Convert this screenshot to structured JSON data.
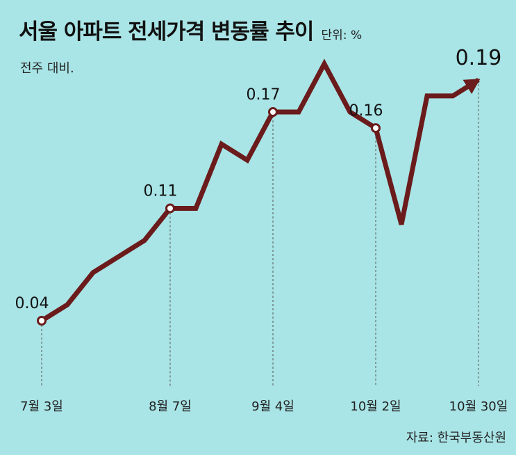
{
  "header": {
    "title": "서울 아파트 전세가격 변동률 추이",
    "unit": "단위: %",
    "subtitle": "전주 대비."
  },
  "source": "자료: 한국부동산원",
  "colors": {
    "background": "#a9e4e6",
    "line": "#6b1b1b",
    "marker_fill": "#ffffff",
    "guide": "#555555"
  },
  "chart_data": {
    "type": "line",
    "title": "서울 아파트 전세가격 변동률 추이",
    "ylabel": "단위: %",
    "note": "전주 대비.",
    "x_tick_labels": [
      "7월 3일",
      "8월 7일",
      "9월 4일",
      "10월 2일",
      "10월 30일"
    ],
    "x_ticks_index": [
      0,
      5,
      9,
      13,
      17
    ],
    "series": [
      {
        "values": [
          0.04,
          0.05,
          0.07,
          0.08,
          0.09,
          0.11,
          0.11,
          0.15,
          0.14,
          0.17,
          0.17,
          0.2,
          0.17,
          0.16,
          0.1,
          0.18,
          0.18,
          0.19
        ]
      }
    ],
    "data_labels": [
      {
        "index": 0,
        "text": "0.04"
      },
      {
        "index": 5,
        "text": "0.11"
      },
      {
        "index": 9,
        "text": "0.17"
      },
      {
        "index": 13,
        "text": "0.16"
      },
      {
        "index": 17,
        "text": "0.19"
      }
    ],
    "grid": false,
    "legend": "none"
  }
}
